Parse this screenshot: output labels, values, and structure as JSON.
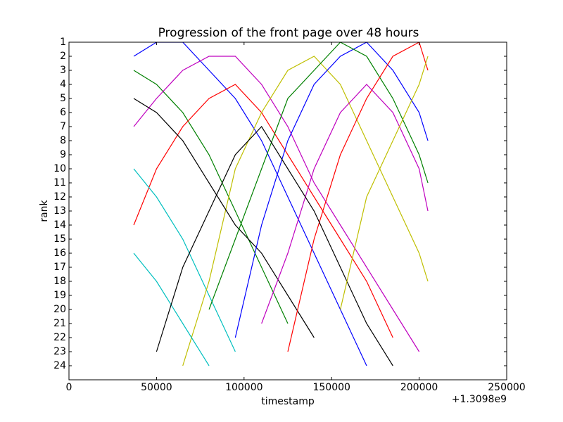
{
  "chart_data": {
    "type": "line",
    "title": "Progression of the front page over 48 hours",
    "x_label": "timestamp",
    "y_label": "rank",
    "x_offset_label": "+1.3098e9",
    "x": [
      37000,
      50000,
      65000,
      80000,
      95000,
      110000,
      125000,
      140000,
      155000,
      170000,
      185000,
      200000,
      205000
    ],
    "series": [
      {
        "color": "#0000ff",
        "values": [
          2,
          1,
          1,
          3,
          5,
          8,
          12,
          16,
          20,
          24,
          null,
          null,
          null
        ]
      },
      {
        "color": "#008000",
        "values": [
          3,
          4,
          6,
          9,
          13,
          17,
          21,
          null,
          null,
          null,
          null,
          null,
          null
        ]
      },
      {
        "color": "#ff0000",
        "values": [
          14,
          10,
          7,
          5,
          4,
          6,
          9,
          12,
          15,
          18,
          22,
          null,
          null
        ]
      },
      {
        "color": "#00bfbf",
        "values": [
          10,
          12,
          15,
          19,
          23,
          null,
          null,
          null,
          null,
          null,
          null,
          null,
          null
        ]
      },
      {
        "color": "#bf00bf",
        "values": [
          7,
          5,
          3,
          2,
          2,
          4,
          7,
          11,
          14,
          17,
          20,
          23,
          null
        ]
      },
      {
        "color": "#bfbf00",
        "values": [
          null,
          null,
          24,
          18,
          10,
          6,
          3,
          2,
          4,
          8,
          12,
          16,
          18
        ]
      },
      {
        "color": "#000000",
        "values": [
          5,
          6,
          8,
          11,
          14,
          16,
          19,
          22,
          null,
          null,
          null,
          null,
          null
        ]
      },
      {
        "color": "#0000ff",
        "values": [
          null,
          null,
          null,
          null,
          22,
          14,
          8,
          4,
          2,
          1,
          3,
          6,
          8
        ]
      },
      {
        "color": "#008000",
        "values": [
          null,
          null,
          null,
          20,
          15,
          10,
          5,
          3,
          1,
          2,
          5,
          9,
          11
        ]
      },
      {
        "color": "#ff0000",
        "values": [
          null,
          null,
          null,
          null,
          null,
          null,
          23,
          15,
          9,
          5,
          2,
          1,
          3
        ]
      },
      {
        "color": "#00bfbf",
        "values": [
          16,
          18,
          21,
          24,
          null,
          null,
          null,
          null,
          null,
          null,
          null,
          null,
          null
        ]
      },
      {
        "color": "#bf00bf",
        "values": [
          null,
          null,
          null,
          null,
          null,
          21,
          16,
          10,
          6,
          4,
          6,
          10,
          13
        ]
      },
      {
        "color": "#000000",
        "values": [
          null,
          23,
          17,
          13,
          9,
          7,
          10,
          13,
          17,
          21,
          24,
          null,
          null
        ]
      },
      {
        "color": "#bfbf00",
        "values": [
          null,
          null,
          null,
          null,
          null,
          null,
          null,
          null,
          20,
          12,
          8,
          4,
          2
        ]
      }
    ],
    "xlim": [
      0,
      250000
    ],
    "xticks": [
      0,
      50000,
      100000,
      150000,
      200000,
      250000
    ],
    "ylim": [
      25,
      1
    ],
    "yticks": [
      1,
      2,
      3,
      4,
      5,
      6,
      7,
      8,
      9,
      10,
      11,
      12,
      13,
      14,
      15,
      16,
      17,
      18,
      19,
      20,
      21,
      22,
      23,
      24
    ],
    "grid": false
  }
}
